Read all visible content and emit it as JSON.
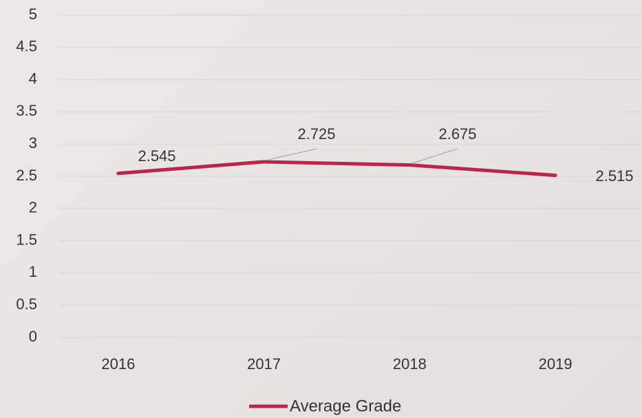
{
  "chart_data": {
    "type": "line",
    "categories": [
      "2016",
      "2017",
      "2018",
      "2019"
    ],
    "series": [
      {
        "name": "Average Grade",
        "color": "#bc2449",
        "values": [
          2.545,
          2.725,
          2.675,
          2.515
        ]
      }
    ],
    "ylim": [
      0,
      5
    ],
    "yticks": [
      0,
      0.5,
      1,
      1.5,
      2,
      2.5,
      3,
      3.5,
      4,
      4.5,
      5
    ],
    "grid": true,
    "legend": "bottom"
  }
}
